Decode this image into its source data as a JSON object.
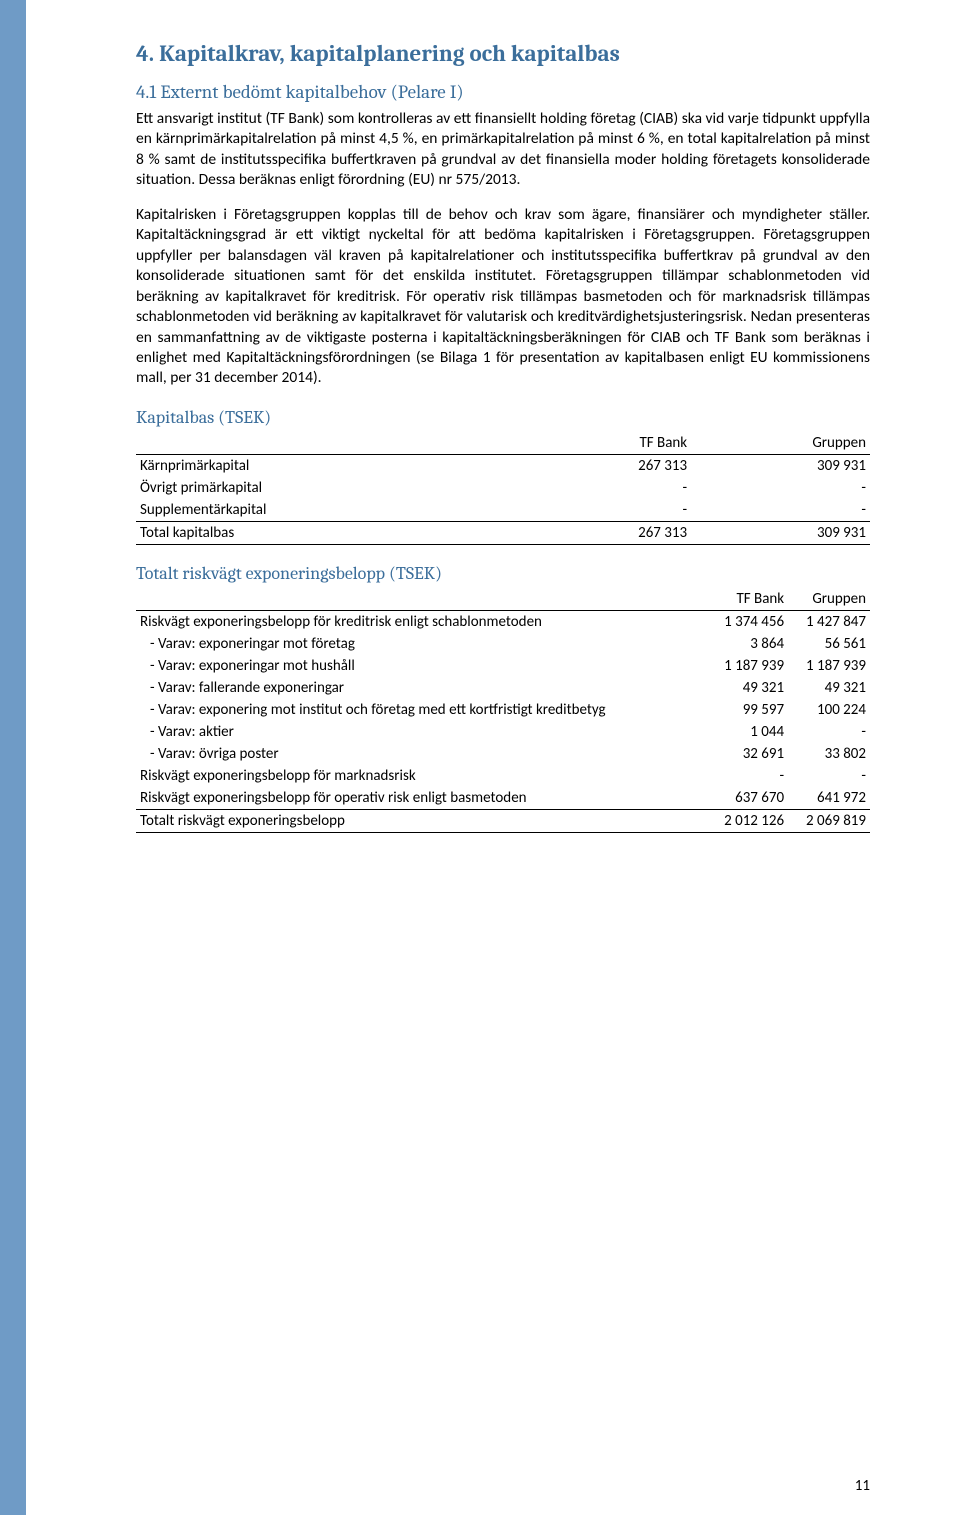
{
  "section": {
    "title": "4. Kapitalkrav, kapitalplanering och kapitalbas",
    "subsection_title": "4.1 Externt bedömt kapitalbehov (Pelare I)",
    "para1": "Ett ansvarigt institut (TF Bank) som kontrolleras av ett finansiellt holding företag (CIAB) ska vid varje tidpunkt uppfylla en kärnprimärkapitalrelation på minst 4,5 %, en primärkapitalrelation på minst 6 %, en total kapitalrelation på minst 8 % samt de institutsspecifika buffertkraven på grundval av det finansiella moder holding företagets konsoliderade situation. Dessa beräknas enligt förordning (EU) nr 575/2013.",
    "para2": "Kapitalrisken i Företagsgruppen kopplas till de behov och krav som ägare, finansiärer och myndigheter ställer. Kapitaltäckningsgrad är ett viktigt nyckeltal för att bedöma kapitalrisken i Företagsgruppen. Företagsgruppen uppfyller per balansdagen väl kraven på kapitalrelationer och institutsspecifika buffertkrav på grundval av den konsoliderade situationen samt för det enskilda institutet. Företagsgruppen tillämpar schablonmetoden vid beräkning av kapitalkravet för kreditrisk. För operativ risk tillämpas basmetoden och för marknadsrisk tillämpas schablonmetoden vid beräkning av kapitalkravet för valutarisk och kreditvärdighetsjusteringsrisk. Nedan presenteras en sammanfattning av de viktigaste posterna i kapitaltäckningsberäkningen för CIAB och TF Bank som beräknas i enlighet med Kapitaltäckningsförordningen (se Bilaga 1 för presentation av kapitalbasen enligt EU kommissionens mall, per 31 december 2014)."
  },
  "table1": {
    "title": "Kapitalbas (TSEK)",
    "col_tf": "TF Bank",
    "col_grp": "Gruppen",
    "rows": [
      {
        "label": "Kärnprimärkapital",
        "tf": "267 313",
        "grp": "309 931"
      },
      {
        "label": "Övrigt primärkapital",
        "tf": "-",
        "grp": "-"
      },
      {
        "label": "Supplementärkapital",
        "tf": "-",
        "grp": "-"
      }
    ],
    "total": {
      "label": "Total kapitalbas",
      "tf": "267 313",
      "grp": "309 931"
    }
  },
  "table2": {
    "title": "Totalt riskvägt exponeringsbelopp (TSEK)",
    "col_tf": "TF Bank",
    "col_grp": "Gruppen",
    "row_kredit": {
      "label": "Riskvägt exponeringsbelopp för kreditrisk enligt schablonmetoden",
      "tf": "1 374 456",
      "grp": "1 427 847"
    },
    "row_foretag": {
      "label": "-   Varav: exponeringar mot företag",
      "tf": "3 864",
      "grp": "56 561"
    },
    "row_hushall": {
      "label": "-   Varav: exponeringar mot hushåll",
      "tf": "1 187 939",
      "grp": "1 187 939"
    },
    "row_fallerande": {
      "label": "-   Varav: fallerande exponeringar",
      "tf": "49 321",
      "grp": "49 321"
    },
    "row_kort": {
      "label": "-   Varav: exponering mot institut och företag med ett kortfristigt kreditbetyg",
      "tf": "99 597",
      "grp": "100 224"
    },
    "row_aktier": {
      "label": "-   Varav: aktier",
      "tf": "1 044",
      "grp": "-"
    },
    "row_ovriga": {
      "label": "-   Varav: övriga poster",
      "tf": "32 691",
      "grp": "33 802"
    },
    "row_marknad": {
      "label": "Riskvägt exponeringsbelopp för marknadsrisk",
      "tf": "-",
      "grp": "-"
    },
    "row_operativ": {
      "label": "Riskvägt exponeringsbelopp för operativ risk enligt basmetoden",
      "tf": "637 670",
      "grp": "641 972"
    },
    "total": {
      "label": "Totalt riskvägt exponeringsbelopp",
      "tf": "2 012 126",
      "grp": "2 069 819"
    }
  },
  "page_number": "11",
  "colors": {
    "accent_bar": "#6f9bc6",
    "heading": "#3b6e9b"
  }
}
